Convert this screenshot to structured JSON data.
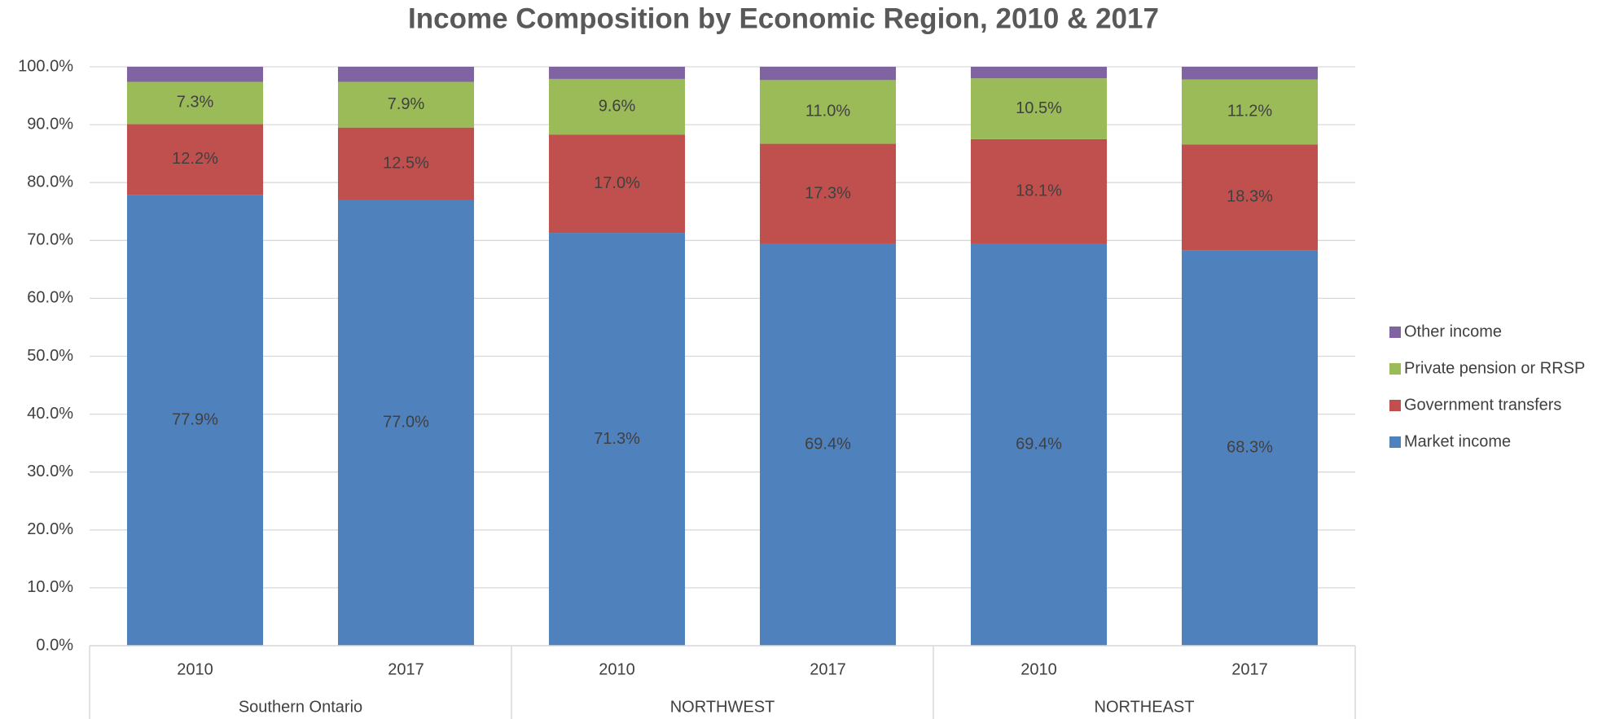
{
  "chart_data": {
    "type": "stacked_bar",
    "title": "Income Composition by Economic Region, 2010 & 2017",
    "categories": [
      "2010",
      "2017",
      "2010",
      "2017",
      "2010",
      "2017"
    ],
    "groups": [
      {
        "name": "Southern Ontario",
        "size": 2
      },
      {
        "name": "NORTHWEST",
        "size": 2
      },
      {
        "name": "NORTHEAST",
        "size": 2
      }
    ],
    "series": [
      {
        "name": "Market income",
        "color": "#4f81bd",
        "values": [
          77.9,
          77.0,
          71.3,
          69.4,
          69.4,
          68.3
        ],
        "value_labels": [
          "77.9%",
          "77.0%",
          "71.3%",
          "69.4%",
          "69.4%",
          "68.3%"
        ]
      },
      {
        "name": "Government transfers",
        "color": "#c0504d",
        "values": [
          12.2,
          12.5,
          17.0,
          17.3,
          18.1,
          18.3
        ],
        "value_labels": [
          "12.2%",
          "12.5%",
          "17.0%",
          "17.3%",
          "18.1%",
          "18.3%"
        ]
      },
      {
        "name": "Private pension or RRSP",
        "color": "#9bbb59",
        "values": [
          7.3,
          7.9,
          9.6,
          11.0,
          10.5,
          11.2
        ],
        "value_labels": [
          "7.3%",
          "7.9%",
          "9.6%",
          "11.0%",
          "10.5%",
          "11.2%"
        ]
      },
      {
        "name": "Other income",
        "color": "#8064a2",
        "values": [
          2.6,
          2.6,
          2.1,
          2.3,
          2.0,
          2.2
        ]
      }
    ],
    "ylim": [
      0,
      100
    ],
    "yticks": [
      {
        "value": 0,
        "label": "0.0%"
      },
      {
        "value": 10,
        "label": "10.0%"
      },
      {
        "value": 20,
        "label": "20.0%"
      },
      {
        "value": 30,
        "label": "30.0%"
      },
      {
        "value": 40,
        "label": "40.0%"
      },
      {
        "value": 50,
        "label": "50.0%"
      },
      {
        "value": 60,
        "label": "60.0%"
      },
      {
        "value": 70,
        "label": "70.0%"
      },
      {
        "value": 80,
        "label": "80.0%"
      },
      {
        "value": 90,
        "label": "90.0%"
      },
      {
        "value": 100,
        "label": "100.0%"
      }
    ],
    "grid": true,
    "legend": "right"
  }
}
